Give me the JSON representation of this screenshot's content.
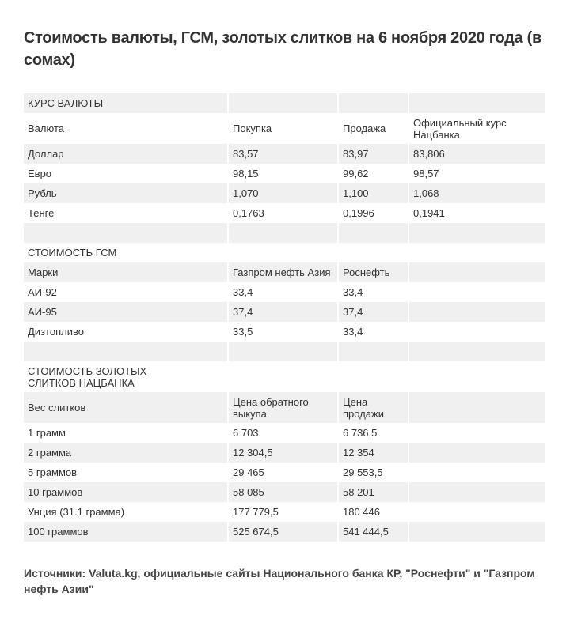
{
  "title": "Стоимость валюты, ГСМ, золотых слитков на 6 ноября 2020 года (в сомах)",
  "rows": [
    [
      "КУРС ВАЛЮТЫ",
      "",
      "",
      ""
    ],
    [
      "Валюта",
      "Покупка",
      "Продажа",
      "Официальный курс Нацбанка"
    ],
    [
      "Доллар",
      "83,57",
      "83,97",
      "83,806"
    ],
    [
      "Евро",
      "98,15",
      "99,62",
      "98,57"
    ],
    [
      "Рубль",
      "1,070",
      "1,100",
      "1,068"
    ],
    [
      "Тенге",
      "0,1763",
      "0,1996",
      "0,1941"
    ],
    [
      "",
      "",
      "",
      ""
    ],
    [
      "СТОИМОСТЬ ГСМ",
      "",
      "",
      ""
    ],
    [
      "Марки",
      "Газпром нефть Азия",
      "Роснефть",
      ""
    ],
    [
      "АИ-92",
      "33,4",
      "33,4",
      ""
    ],
    [
      "АИ-95",
      "37,4",
      "37,4",
      ""
    ],
    [
      "Дизтопливо",
      "33,5",
      "33,4",
      ""
    ],
    [
      "",
      "",
      "",
      ""
    ],
    [
      "СТОИМОСТЬ ЗОЛОТЫХ СЛИТКОВ НАЦБАНКА",
      "",
      "",
      ""
    ],
    [
      "Вес слитков",
      "Цена обратного выкупа",
      "Цена продажи",
      ""
    ],
    [
      "1 грамм",
      "6 703",
      "6 736,5",
      ""
    ],
    [
      "2 грамма",
      "12 304,5",
      "12 354",
      ""
    ],
    [
      "5 граммов",
      "29 465",
      "29 553,5",
      ""
    ],
    [
      "10 граммов",
      "58 085",
      "58 201",
      ""
    ],
    [
      "Унция (31.1 грамма)",
      "177 779,5",
      "180 446",
      ""
    ],
    [
      "100 граммов",
      "525 674,5",
      "541 444,5",
      ""
    ]
  ],
  "source": "Источники: Valuta.kg, официальные сайты Национального банка КР, \"Роснефти\" и \"Газпром нефть Азии\""
}
